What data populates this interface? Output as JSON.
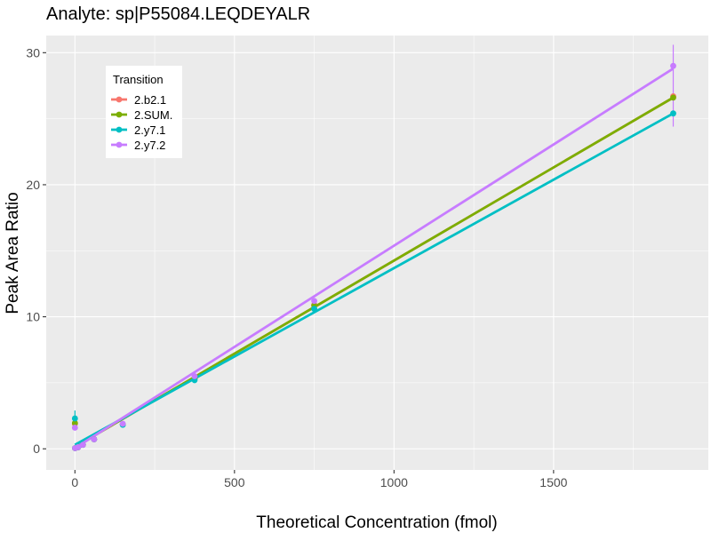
{
  "chart_data": {
    "type": "scatter",
    "title": "Analyte: sp|P55084.LEQDEYALR",
    "xlabel": "Theoretical Concentration (fmol)",
    "ylabel": "Peak Area Ratio",
    "xlim": [
      -90,
      1985
    ],
    "ylim": [
      -1.6,
      31.3
    ],
    "x_ticks": [
      0,
      500,
      1000,
      1500
    ],
    "x_tick_labels": [
      "0",
      "500",
      "1000",
      "1500"
    ],
    "y_ticks": [
      0,
      10,
      20,
      30
    ],
    "y_tick_labels": [
      "0",
      "10",
      "20",
      "30"
    ],
    "grid": true,
    "legend": {
      "title": "Transition",
      "position": "top-left"
    },
    "series": [
      {
        "name": "2.b2.1",
        "color": "#f8766d",
        "points": [
          {
            "x": 0,
            "y": 1.9
          },
          {
            "x": 0.5,
            "y": 0.05
          },
          {
            "x": 10,
            "y": 0.12
          },
          {
            "x": 25,
            "y": 0.3
          },
          {
            "x": 60,
            "y": 0.72
          },
          {
            "x": 150,
            "y": 1.85
          },
          {
            "x": 375,
            "y": 5.3
          },
          {
            "x": 750,
            "y": 10.9
          },
          {
            "x": 1875,
            "y": 26.7
          }
        ],
        "fit": {
          "x": [
            0,
            1875
          ],
          "y": [
            0.15,
            26.6
          ]
        }
      },
      {
        "name": "2.SUM.",
        "color": "#7cae00",
        "points": [
          {
            "x": 0,
            "y": 1.95
          },
          {
            "x": 0.5,
            "y": 0.05
          },
          {
            "x": 10,
            "y": 0.12
          },
          {
            "x": 25,
            "y": 0.3
          },
          {
            "x": 60,
            "y": 0.72
          },
          {
            "x": 150,
            "y": 1.85
          },
          {
            "x": 375,
            "y": 5.35
          },
          {
            "x": 750,
            "y": 10.85
          },
          {
            "x": 1875,
            "y": 26.6
          }
        ],
        "fit": {
          "x": [
            0,
            1875
          ],
          "y": [
            0.15,
            26.6
          ]
        }
      },
      {
        "name": "2.y7.1",
        "color": "#00bfc4",
        "points": [
          {
            "x": 0,
            "y": 2.3
          },
          {
            "x": 0.5,
            "y": 0.05
          },
          {
            "x": 10,
            "y": 0.12
          },
          {
            "x": 25,
            "y": 0.3
          },
          {
            "x": 60,
            "y": 0.72
          },
          {
            "x": 150,
            "y": 1.82
          },
          {
            "x": 375,
            "y": 5.2
          },
          {
            "x": 750,
            "y": 10.6
          },
          {
            "x": 1875,
            "y": 25.4
          }
        ],
        "fit": {
          "x": [
            0,
            1875
          ],
          "y": [
            0.3,
            25.4
          ]
        }
      },
      {
        "name": "2.y7.2",
        "color": "#c77cff",
        "points": [
          {
            "x": 0,
            "y": 1.6
          },
          {
            "x": 0.5,
            "y": 0.05
          },
          {
            "x": 10,
            "y": 0.12
          },
          {
            "x": 25,
            "y": 0.3
          },
          {
            "x": 60,
            "y": 0.72
          },
          {
            "x": 150,
            "y": 1.9
          },
          {
            "x": 375,
            "y": 5.5
          },
          {
            "x": 750,
            "y": 11.2
          },
          {
            "x": 1875,
            "y": 29.0
          }
        ],
        "fit": {
          "x": [
            0,
            1875
          ],
          "y": [
            0.05,
            28.8
          ]
        }
      }
    ],
    "error_bars": [
      {
        "series": "2.y7.1",
        "x": 0,
        "low": 1.5,
        "high": 2.9
      },
      {
        "series": "2.y7.2",
        "x": 1875,
        "low": 24.4,
        "high": 30.6
      }
    ]
  }
}
